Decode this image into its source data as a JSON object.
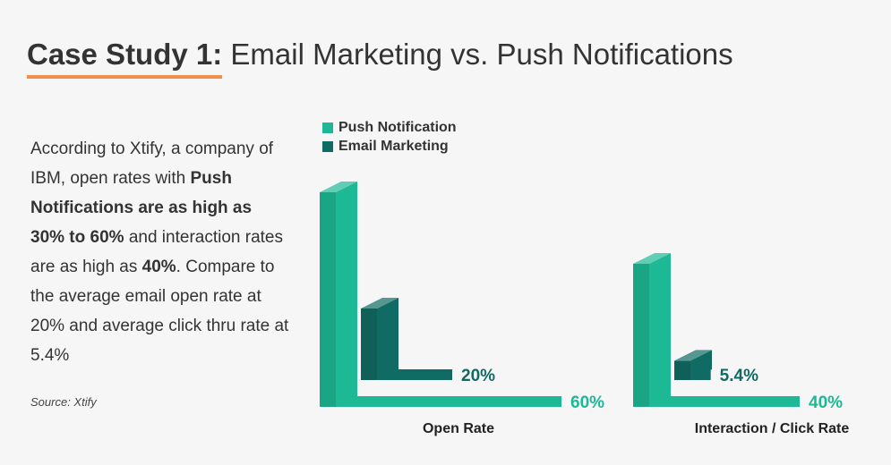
{
  "header": {
    "title_bold": "Case Study 1:",
    "title_rest": "Email Marketing vs. Push Notifications"
  },
  "paragraph": [
    {
      "text": "According to Xtify, a company of IBM, open rates with ",
      "bold": false
    },
    {
      "text": "Push Notifications are as high as 30% to 60%",
      "bold": true
    },
    {
      "text": " and interaction rates are as high as ",
      "bold": false
    },
    {
      "text": "40%",
      "bold": true
    },
    {
      "text": ". Compare to the average email open rate at 20% and average click thru rate at 5.4%",
      "bold": false
    }
  ],
  "source": "Source: Xtify",
  "chart_data": {
    "type": "bar3d",
    "categories": [
      "Open Rate",
      "Interaction / Click Rate"
    ],
    "series": [
      {
        "name": "Push Notification",
        "color": "#1db894",
        "values": [
          60,
          40
        ],
        "value_labels": [
          "60%",
          "40%"
        ]
      },
      {
        "name": "Email Marketing",
        "color": "#0f6b63",
        "values": [
          20,
          5.4
        ],
        "value_labels": [
          "20%",
          "5.4%"
        ]
      }
    ]
  }
}
